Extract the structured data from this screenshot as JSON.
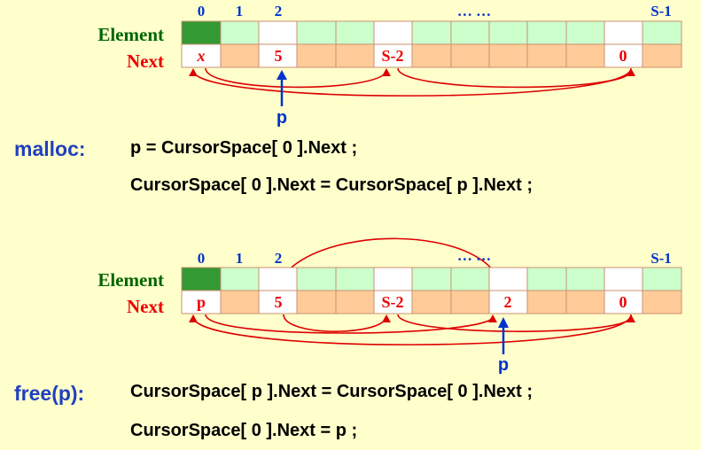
{
  "colors": {
    "background": "#ffffcc",
    "element_free": "#ccffcc",
    "element_head": "#339933",
    "next_cell": "#ffcc99",
    "next_cell_white": "#ffffff",
    "index_label": "#0033cc",
    "element_label": "#006600",
    "next_label": "#ee0000",
    "arrow": "#dd0000",
    "pointer": "#0033cc",
    "op_label": "#1f3fbf"
  },
  "diagram1": {
    "indices": [
      "0",
      "1",
      "2",
      "… …",
      "S-1"
    ],
    "row_labels": {
      "element": "Element",
      "next": "Next"
    },
    "next_values": {
      "cell0": "x",
      "cell2": "5",
      "cell5": "S-2",
      "cell11": "0"
    },
    "pointer_label": "p"
  },
  "malloc": {
    "label": "malloc:",
    "line1": "p = CursorSpace[ 0 ].Next ;",
    "line2": "CursorSpace[ 0 ].Next = CursorSpace[ p ].Next ;"
  },
  "diagram2": {
    "indices": [
      "0",
      "1",
      "2",
      "… …",
      "S-1"
    ],
    "row_labels": {
      "element": "Element",
      "next": "Next"
    },
    "next_values": {
      "cell0": "p",
      "cell2": "5",
      "cell5": "S-2",
      "cell8": "2",
      "cell11": "0"
    },
    "pointer_label": "p"
  },
  "free": {
    "label": "free(p):",
    "line1": "CursorSpace[ p ].Next = CursorSpace[ 0 ].Next ;",
    "line2": "CursorSpace[ 0 ].Next = p ;"
  }
}
